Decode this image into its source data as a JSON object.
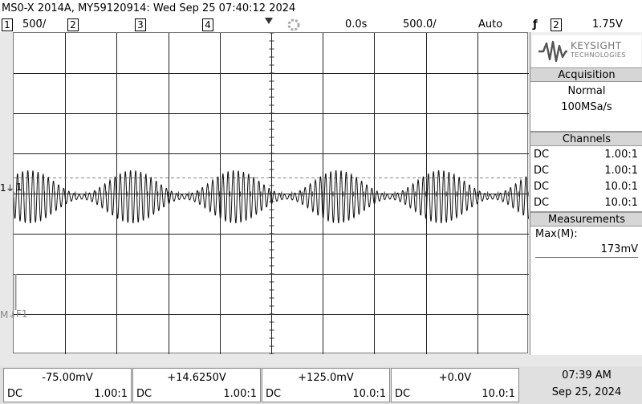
{
  "title": "MS0-X 2014A, MY59120914: Wed Sep 25 07:40:12 2024",
  "topbar": {
    "ch1_num": "1",
    "ch1_scale": "500̄/",
    "ch2_num": "2",
    "ch3_num": "3",
    "ch4_num": "4",
    "time_delay": "0.0s",
    "time_scale": "500.0̄/",
    "trigger_mode": "Auto",
    "trigger_symbol": "ƒ",
    "trigger_source": "2",
    "trigger_level": "1.75V"
  },
  "screen": {
    "ch1_marker": "1",
    "ch1_label": "1",
    "f1_marker": "M",
    "f1_label": "F1"
  },
  "logo": {
    "brand": "KEYSIGHT",
    "sub": "TECHNOLOGIES"
  },
  "acquisition": {
    "heading": "Acquisition",
    "mode": "Normal",
    "rate": "100MSa/s"
  },
  "channels": {
    "heading": "Channels",
    "rows": [
      {
        "coupling": "DC",
        "probe": "1.00:1"
      },
      {
        "coupling": "DC",
        "probe": "1.00:1"
      },
      {
        "coupling": "DC",
        "probe": "10.0:1"
      },
      {
        "coupling": "DC",
        "probe": "10.0:1"
      }
    ]
  },
  "measurements": {
    "heading": "Measurements",
    "label": "Max(M):",
    "value": "173mV"
  },
  "bottom": [
    {
      "value": "-75.00mV",
      "coupling": "DC",
      "probe": "1.00:1"
    },
    {
      "value": "+14.6250V",
      "coupling": "DC",
      "probe": "1.00:1"
    },
    {
      "value": "+125.0mV",
      "coupling": "DC",
      "probe": "10.0:1"
    },
    {
      "value": "+0.0V",
      "coupling": "DC",
      "probe": "10.0:1"
    }
  ],
  "clock": {
    "time": "07:39 AM",
    "date": "Sep 25, 2024"
  }
}
